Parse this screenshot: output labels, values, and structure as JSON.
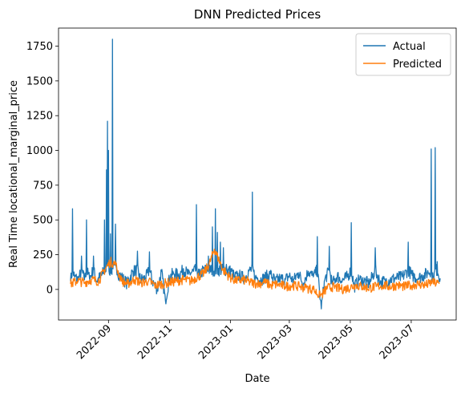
{
  "chart_data": {
    "type": "line",
    "title": "DNN Predicted Prices",
    "xlabel": "Date",
    "ylabel": "Real Time locational_marginal_price",
    "x_range": [
      "2022-07-13",
      "2023-08-15"
    ],
    "ylim": [
      -220,
      1880
    ],
    "x_ticks": [
      "2022-09",
      "2022-11",
      "2023-01",
      "2023-03",
      "2023-05",
      "2023-07"
    ],
    "y_ticks": [
      0,
      250,
      500,
      750,
      1000,
      1250,
      1500,
      1750
    ],
    "grid": false,
    "legend_position": "top-right",
    "colors": {
      "actual": "#1f77b4",
      "predicted": "#ff7f0e"
    },
    "series": [
      {
        "name": "Actual",
        "color": "#1f77b4",
        "points": [
          [
            "2022-07-25",
            60
          ],
          [
            "2022-07-27",
            580
          ],
          [
            "2022-07-29",
            90
          ],
          [
            "2022-08-02",
            70
          ],
          [
            "2022-08-05",
            240
          ],
          [
            "2022-08-08",
            70
          ],
          [
            "2022-08-10",
            500
          ],
          [
            "2022-08-13",
            80
          ],
          [
            "2022-08-17",
            240
          ],
          [
            "2022-08-20",
            60
          ],
          [
            "2022-08-25",
            100
          ],
          [
            "2022-08-28",
            500
          ],
          [
            "2022-08-30",
            860
          ],
          [
            "2022-08-31",
            1210
          ],
          [
            "2022-09-01",
            1000
          ],
          [
            "2022-09-03",
            400
          ],
          [
            "2022-09-05",
            1800
          ],
          [
            "2022-09-06",
            200
          ],
          [
            "2022-09-08",
            470
          ],
          [
            "2022-09-10",
            120
          ],
          [
            "2022-09-15",
            80
          ],
          [
            "2022-09-20",
            40
          ],
          [
            "2022-09-25",
            130
          ],
          [
            "2022-09-30",
            275
          ],
          [
            "2022-10-03",
            70
          ],
          [
            "2022-10-08",
            80
          ],
          [
            "2022-10-12",
            270
          ],
          [
            "2022-10-15",
            60
          ],
          [
            "2022-10-20",
            0
          ],
          [
            "2022-10-24",
            130
          ],
          [
            "2022-10-28",
            -80
          ],
          [
            "2022-11-01",
            80
          ],
          [
            "2022-11-05",
            120
          ],
          [
            "2022-11-10",
            100
          ],
          [
            "2022-11-15",
            150
          ],
          [
            "2022-11-20",
            110
          ],
          [
            "2022-11-25",
            130
          ],
          [
            "2022-11-28",
            610
          ],
          [
            "2022-12-01",
            100
          ],
          [
            "2022-12-05",
            150
          ],
          [
            "2022-12-10",
            240
          ],
          [
            "2022-12-14",
            450
          ],
          [
            "2022-12-17",
            580
          ],
          [
            "2022-12-19",
            410
          ],
          [
            "2022-12-22",
            340
          ],
          [
            "2022-12-25",
            300
          ],
          [
            "2022-12-28",
            180
          ],
          [
            "2023-01-02",
            130
          ],
          [
            "2023-01-05",
            90
          ],
          [
            "2023-01-10",
            100
          ],
          [
            "2023-01-15",
            80
          ],
          [
            "2023-01-20",
            140
          ],
          [
            "2023-01-23",
            700
          ],
          [
            "2023-01-26",
            90
          ],
          [
            "2023-02-01",
            70
          ],
          [
            "2023-02-10",
            110
          ],
          [
            "2023-02-15",
            60
          ],
          [
            "2023-02-20",
            80
          ],
          [
            "2023-02-25",
            70
          ],
          [
            "2023-03-01",
            100
          ],
          [
            "2023-03-05",
            60
          ],
          [
            "2023-03-10",
            120
          ],
          [
            "2023-03-15",
            40
          ],
          [
            "2023-03-20",
            130
          ],
          [
            "2023-03-25",
            90
          ],
          [
            "2023-03-29",
            380
          ],
          [
            "2023-04-02",
            -140
          ],
          [
            "2023-04-05",
            60
          ],
          [
            "2023-04-10",
            310
          ],
          [
            "2023-04-13",
            40
          ],
          [
            "2023-04-18",
            100
          ],
          [
            "2023-04-22",
            60
          ],
          [
            "2023-04-28",
            90
          ],
          [
            "2023-05-02",
            480
          ],
          [
            "2023-05-05",
            20
          ],
          [
            "2023-05-10",
            70
          ],
          [
            "2023-05-15",
            60
          ],
          [
            "2023-05-20",
            40
          ],
          [
            "2023-05-26",
            300
          ],
          [
            "2023-05-31",
            50
          ],
          [
            "2023-06-05",
            60
          ],
          [
            "2023-06-10",
            70
          ],
          [
            "2023-06-15",
            80
          ],
          [
            "2023-06-22",
            90
          ],
          [
            "2023-06-28",
            340
          ],
          [
            "2023-07-02",
            100
          ],
          [
            "2023-07-08",
            80
          ],
          [
            "2023-07-13",
            100
          ],
          [
            "2023-07-18",
            120
          ],
          [
            "2023-07-21",
            1010
          ],
          [
            "2023-07-23",
            60
          ],
          [
            "2023-07-25",
            1020
          ],
          [
            "2023-07-27",
            200
          ],
          [
            "2023-07-30",
            80
          ]
        ]
      },
      {
        "name": "Predicted",
        "color": "#ff7f0e",
        "points": [
          [
            "2022-07-25",
            40
          ],
          [
            "2022-08-01",
            60
          ],
          [
            "2022-08-08",
            50
          ],
          [
            "2022-08-15",
            70
          ],
          [
            "2022-08-22",
            60
          ],
          [
            "2022-08-29",
            150
          ],
          [
            "2022-09-03",
            200
          ],
          [
            "2022-09-08",
            180
          ],
          [
            "2022-09-14",
            60
          ],
          [
            "2022-09-20",
            40
          ],
          [
            "2022-09-27",
            70
          ],
          [
            "2022-10-04",
            50
          ],
          [
            "2022-10-11",
            60
          ],
          [
            "2022-10-18",
            30
          ],
          [
            "2022-10-25",
            40
          ],
          [
            "2022-11-01",
            50
          ],
          [
            "2022-11-08",
            60
          ],
          [
            "2022-11-15",
            70
          ],
          [
            "2022-11-22",
            60
          ],
          [
            "2022-11-29",
            90
          ],
          [
            "2022-12-06",
            120
          ],
          [
            "2022-12-12",
            200
          ],
          [
            "2022-12-16",
            290
          ],
          [
            "2022-12-20",
            220
          ],
          [
            "2022-12-25",
            140
          ],
          [
            "2022-12-31",
            90
          ],
          [
            "2023-01-07",
            60
          ],
          [
            "2023-01-14",
            70
          ],
          [
            "2023-01-21",
            50
          ],
          [
            "2023-01-28",
            40
          ],
          [
            "2023-02-04",
            50
          ],
          [
            "2023-02-11",
            30
          ],
          [
            "2023-02-18",
            40
          ],
          [
            "2023-02-25",
            20
          ],
          [
            "2023-03-04",
            30
          ],
          [
            "2023-03-11",
            20
          ],
          [
            "2023-03-18",
            10
          ],
          [
            "2023-03-25",
            0
          ],
          [
            "2023-04-01",
            -50
          ],
          [
            "2023-04-08",
            10
          ],
          [
            "2023-04-15",
            20
          ],
          [
            "2023-04-22",
            0
          ],
          [
            "2023-04-29",
            10
          ],
          [
            "2023-05-06",
            30
          ],
          [
            "2023-05-13",
            20
          ],
          [
            "2023-05-20",
            10
          ],
          [
            "2023-05-27",
            20
          ],
          [
            "2023-06-03",
            30
          ],
          [
            "2023-06-10",
            20
          ],
          [
            "2023-06-17",
            30
          ],
          [
            "2023-06-24",
            20
          ],
          [
            "2023-07-01",
            30
          ],
          [
            "2023-07-08",
            40
          ],
          [
            "2023-07-15",
            30
          ],
          [
            "2023-07-22",
            50
          ],
          [
            "2023-07-29",
            40
          ]
        ]
      }
    ]
  }
}
